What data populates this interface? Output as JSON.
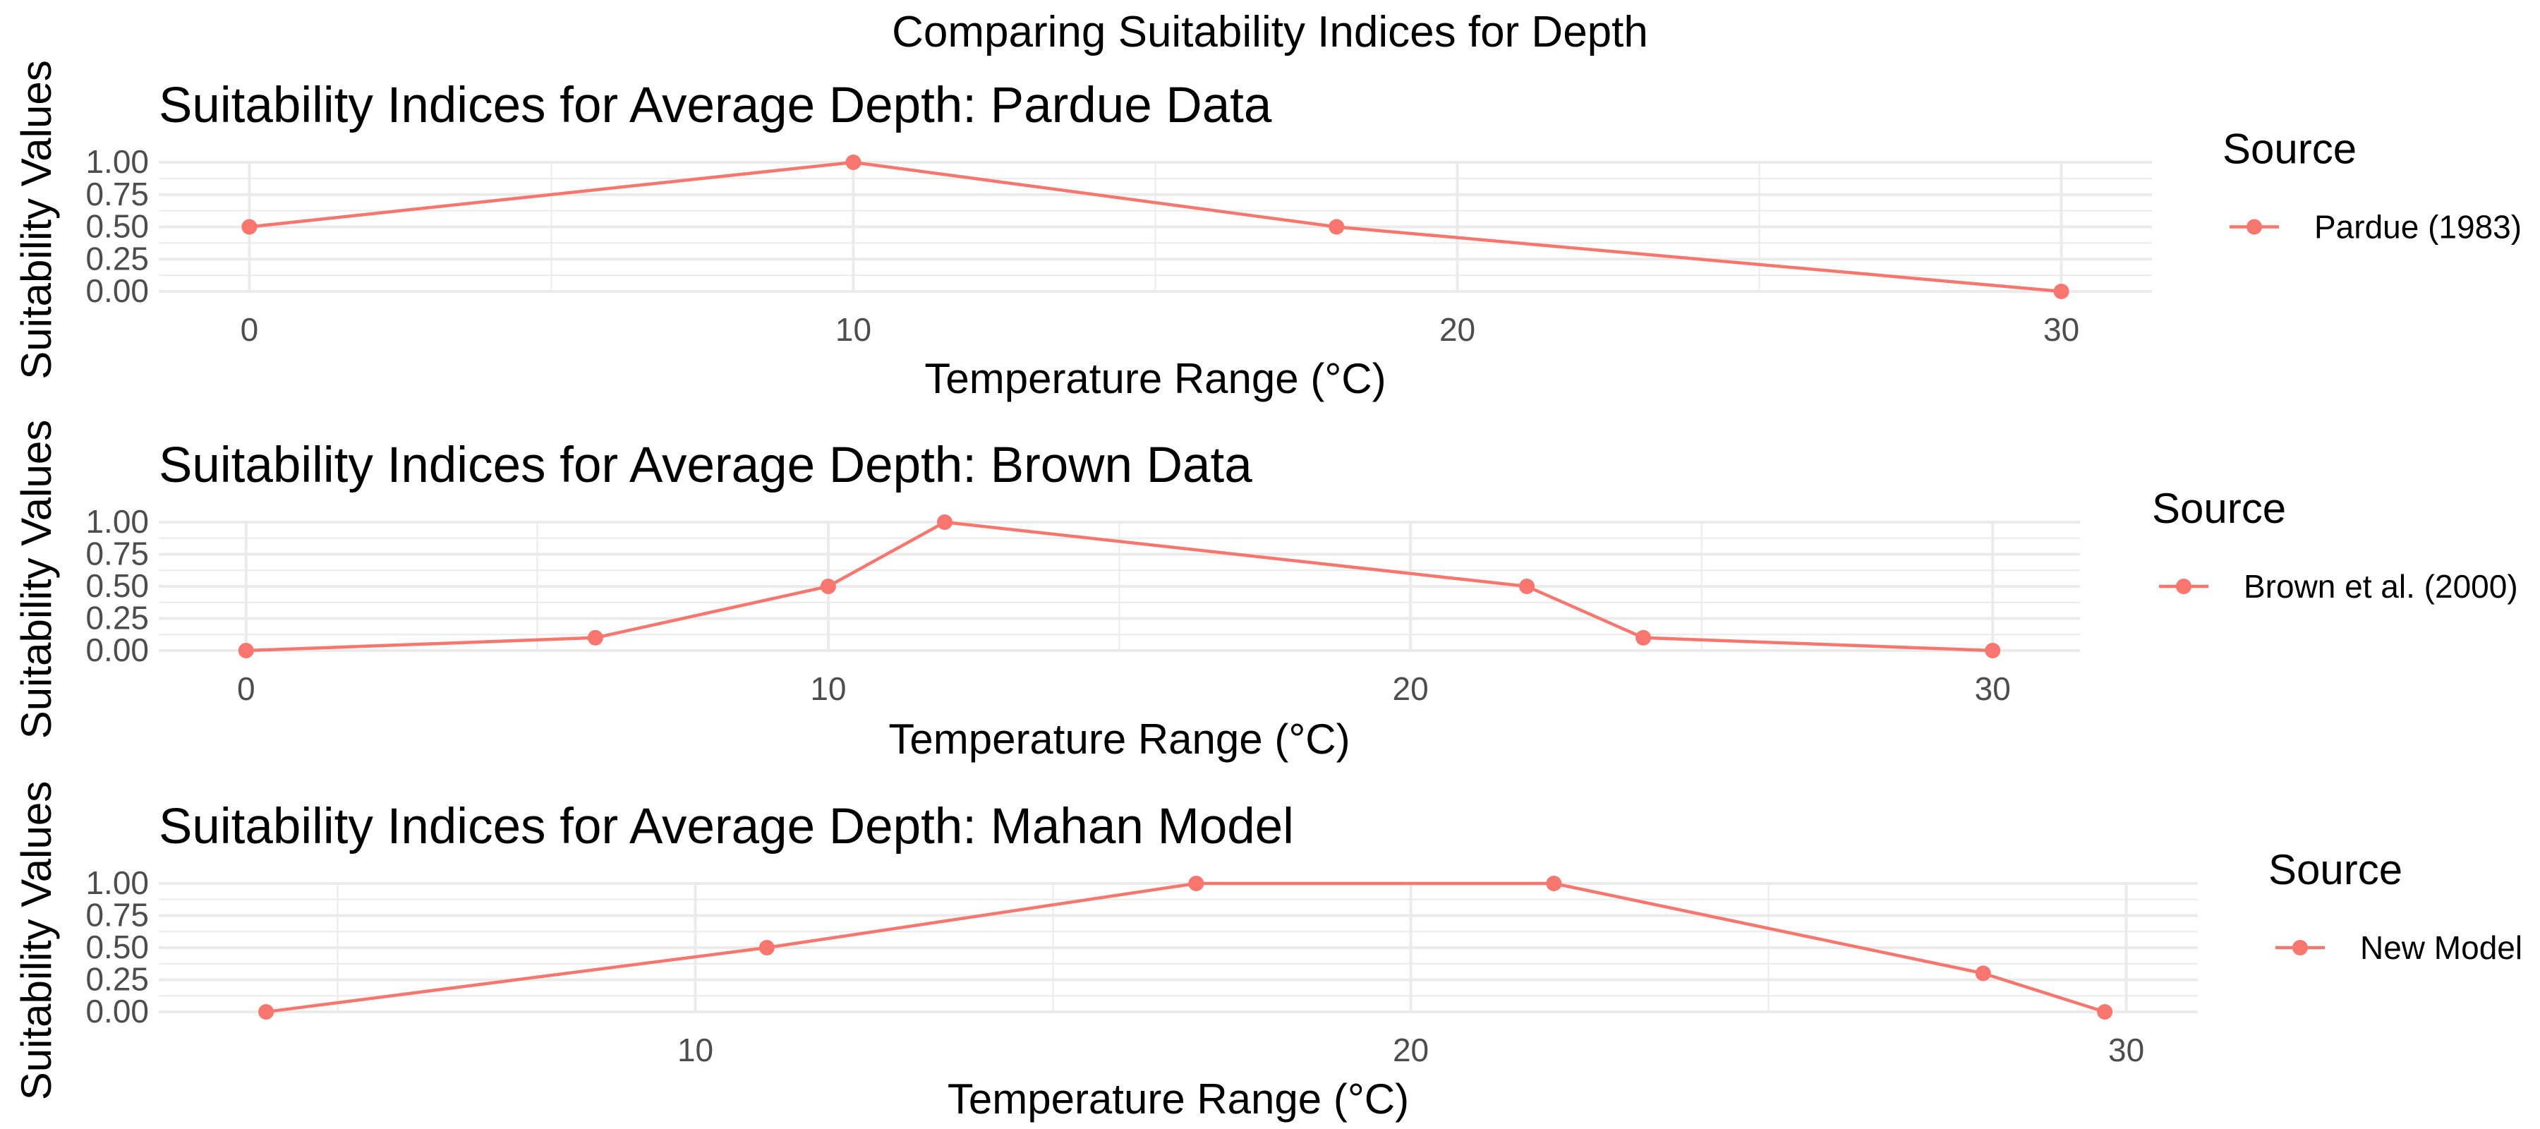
{
  "figure": {
    "title": "Comparing Suitability Indices for Depth"
  },
  "chart_data": [
    {
      "type": "line",
      "title": "Suitability Indices for Average Depth: Pardue Data",
      "xlabel": "Temperature Range (°C)",
      "ylabel": "Suitability Values",
      "xlim": [
        -1.5,
        31.5
      ],
      "ylim": [
        0,
        1
      ],
      "x_ticks": [
        0,
        10,
        20,
        30
      ],
      "y_ticks": [
        0,
        0.25,
        0.5,
        0.75,
        1
      ],
      "y_tick_labels": [
        "0.00",
        "0.25",
        "0.50",
        "0.75",
        "1.00"
      ],
      "grid": true,
      "legend": {
        "title": "Source",
        "position": "right"
      },
      "color": "#F8766D",
      "series": [
        {
          "name": "Pardue (1983)",
          "x": [
            0,
            10,
            18,
            30
          ],
          "y": [
            0.5,
            1.0,
            0.5,
            0.0
          ]
        }
      ]
    },
    {
      "type": "line",
      "title": "Suitability Indices for Average Depth: Brown Data",
      "xlabel": "Temperature Range (°C)",
      "ylabel": "Suitability Values",
      "xlim": [
        -1.5,
        31.5
      ],
      "ylim": [
        0,
        1
      ],
      "x_ticks": [
        0,
        10,
        20,
        30
      ],
      "y_ticks": [
        0,
        0.25,
        0.5,
        0.75,
        1
      ],
      "y_tick_labels": [
        "0.00",
        "0.25",
        "0.50",
        "0.75",
        "1.00"
      ],
      "grid": true,
      "legend": {
        "title": "Source",
        "position": "right"
      },
      "color": "#F8766D",
      "series": [
        {
          "name": "Brown et al. (2000)",
          "x": [
            0,
            6,
            10,
            12,
            22,
            24,
            30
          ],
          "y": [
            0.0,
            0.1,
            0.5,
            1.0,
            0.5,
            0.1,
            0.0
          ]
        }
      ]
    },
    {
      "type": "line",
      "title": "Suitability Indices for Average Depth: Mahan Model",
      "xlabel": "Temperature Range (°C)",
      "ylabel": "Suitability Values",
      "xlim": [
        2.5,
        31
      ],
      "ylim": [
        0,
        1
      ],
      "x_ticks": [
        10,
        20,
        30
      ],
      "y_ticks": [
        0,
        0.25,
        0.5,
        0.75,
        1
      ],
      "y_tick_labels": [
        "0.00",
        "0.25",
        "0.50",
        "0.75",
        "1.00"
      ],
      "grid": true,
      "legend": {
        "title": "Source",
        "position": "right"
      },
      "color": "#F8766D",
      "series": [
        {
          "name": "New Model",
          "x": [
            4,
            11,
            17,
            22,
            28,
            29.7
          ],
          "y": [
            0.0,
            0.5,
            1.0,
            1.0,
            0.3,
            0.0
          ]
        }
      ]
    }
  ]
}
